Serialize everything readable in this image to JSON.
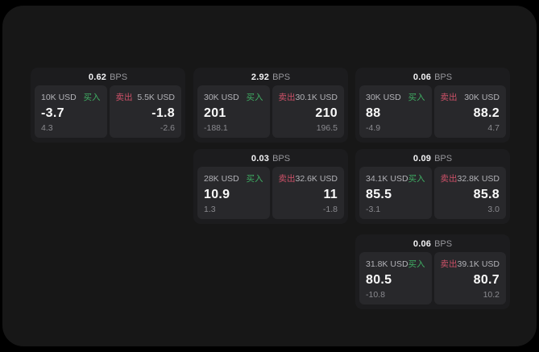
{
  "colors": {
    "buy_green": "#3fae63",
    "sell_rose": "#cd5168"
  },
  "cards": [
    {
      "bps": "0.62",
      "unit": "BPS",
      "buy": {
        "amount": "10K USD",
        "side": "买入",
        "value": "-3.7",
        "sub": "4.3"
      },
      "sell": {
        "side": "卖出",
        "amount": "5.5K USD",
        "value": "-1.8",
        "sub": "-2.6"
      }
    },
    {
      "bps": "2.92",
      "unit": "BPS",
      "buy": {
        "amount": "30K USD",
        "side": "买入",
        "value": "201",
        "sub": "-188.1"
      },
      "sell": {
        "side": "卖出",
        "amount": "30.1K USD",
        "value": "210",
        "sub": "196.5"
      }
    },
    {
      "bps": "0.06",
      "unit": "BPS",
      "buy": {
        "amount": "30K USD",
        "side": "买入",
        "value": "88",
        "sub": "-4.9"
      },
      "sell": {
        "side": "卖出",
        "amount": "30K USD",
        "value": "88.2",
        "sub": "4.7"
      }
    },
    {
      "bps": "0.03",
      "unit": "BPS",
      "buy": {
        "amount": "28K USD",
        "side": "买入",
        "value": "10.9",
        "sub": "1.3"
      },
      "sell": {
        "side": "卖出",
        "amount": "32.6K USD",
        "value": "11",
        "sub": "-1.8"
      }
    },
    {
      "bps": "0.09",
      "unit": "BPS",
      "buy": {
        "amount": "34.1K USD",
        "side": "买入",
        "value": "85.5",
        "sub": "-3.1"
      },
      "sell": {
        "side": "卖出",
        "amount": "32.8K USD",
        "value": "85.8",
        "sub": "3.0"
      }
    },
    {
      "bps": "0.06",
      "unit": "BPS",
      "buy": {
        "amount": "31.8K USD",
        "side": "买入",
        "value": "80.5",
        "sub": "-10.8"
      },
      "sell": {
        "side": "卖出",
        "amount": "39.1K USD",
        "value": "80.7",
        "sub": "10.2"
      }
    }
  ]
}
